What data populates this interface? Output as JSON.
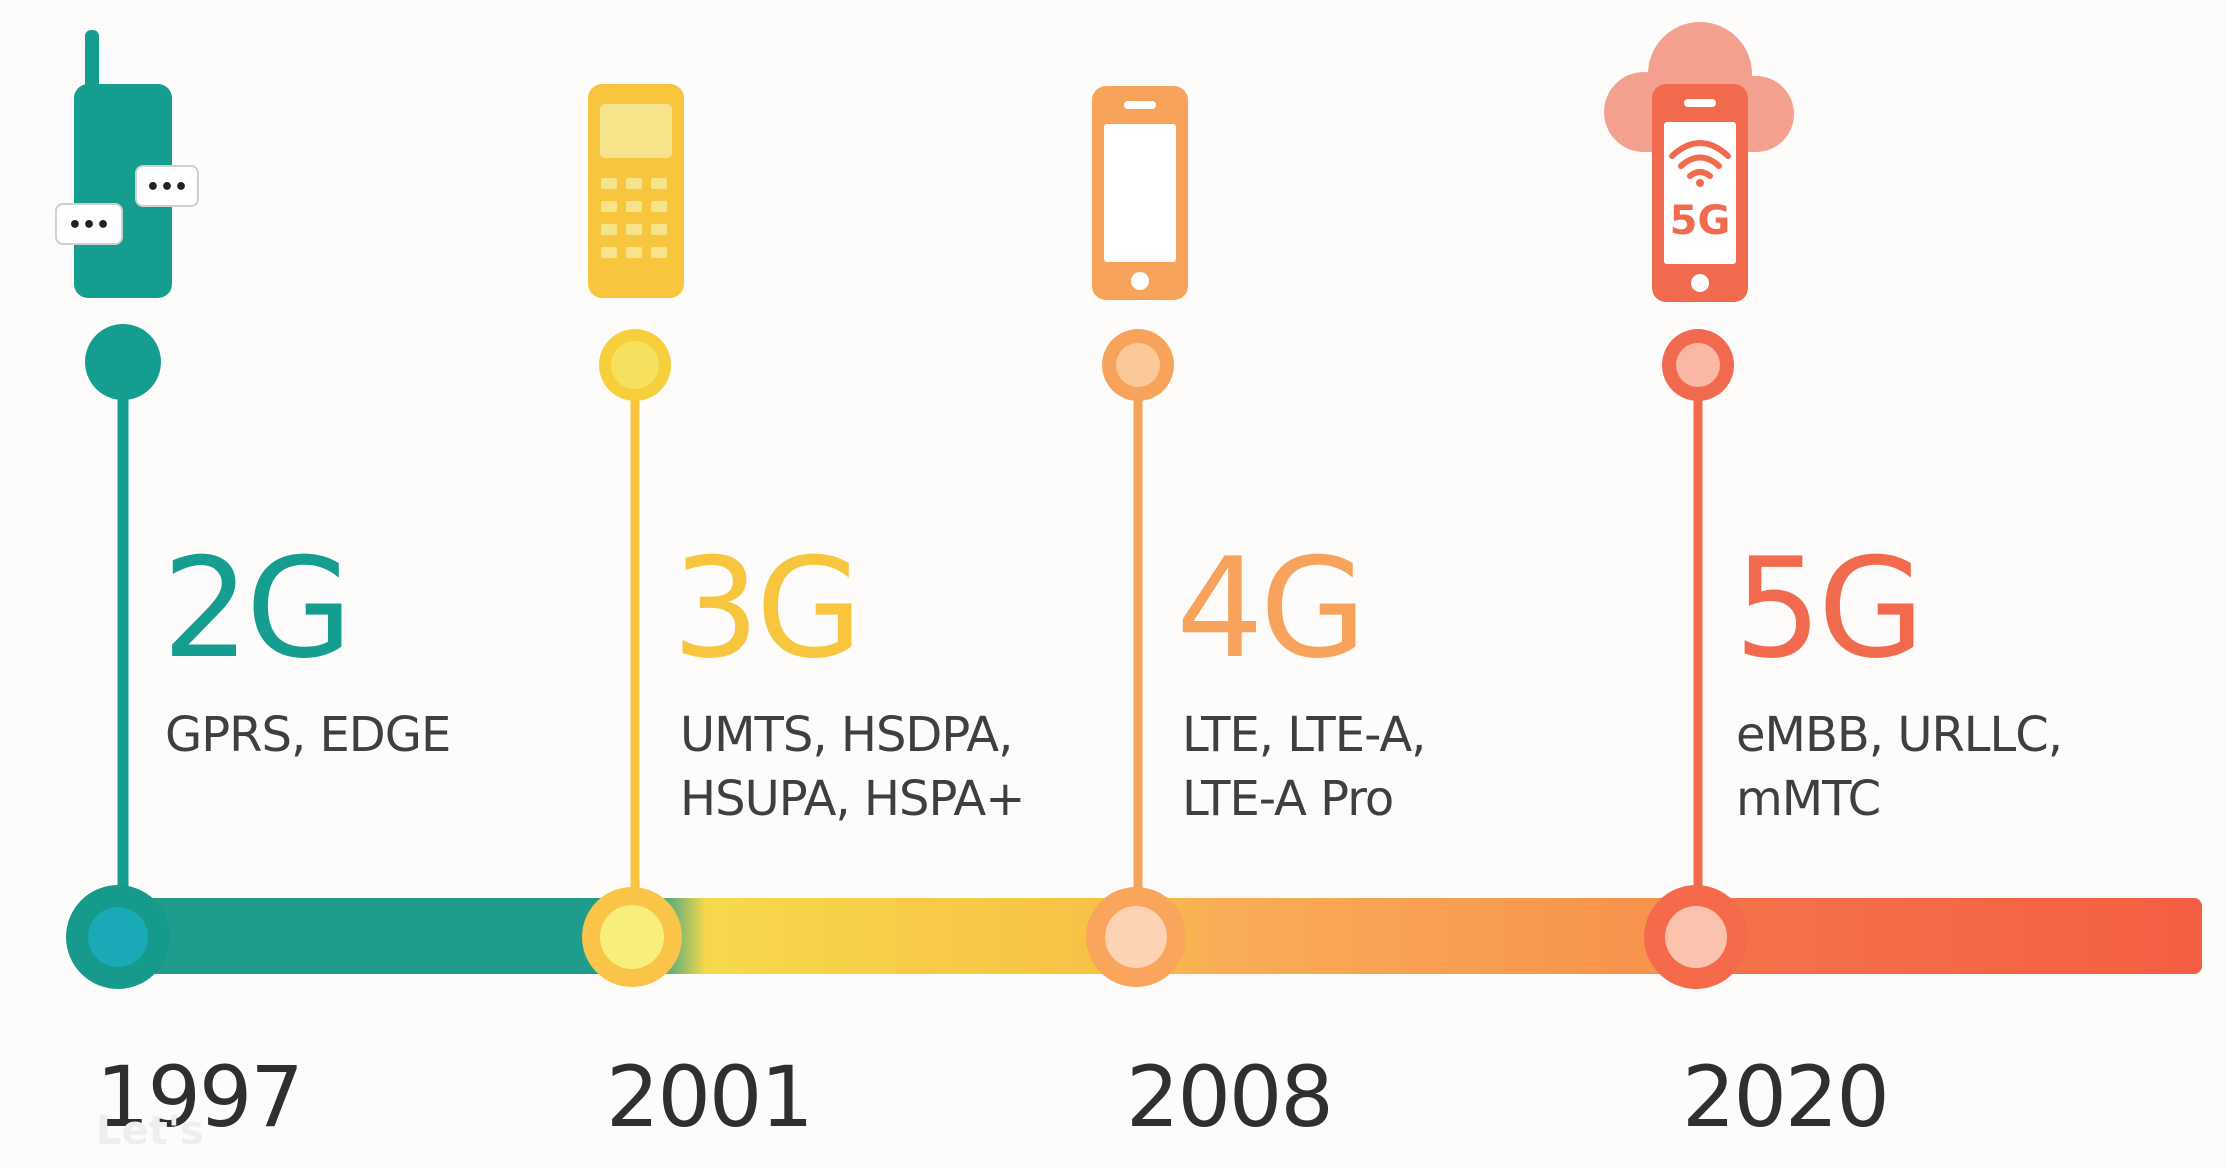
{
  "colors": {
    "g2": "#159e8f",
    "g3": "#f7c63e",
    "g4": "#f8a35b",
    "g5": "#f26a4e"
  },
  "generations": [
    {
      "title": "2G",
      "tech_line1": "GPRS, EDGE",
      "tech_line2": "",
      "year": "1997",
      "icon": "brick-phone-icon"
    },
    {
      "title": "3G",
      "tech_line1": "UMTS, HSDPA,",
      "tech_line2": "HSUPA, HSPA+",
      "year": "2001",
      "icon": "keypad-phone-icon"
    },
    {
      "title": "4G",
      "tech_line1": "LTE, LTE-A,",
      "tech_line2": "LTE-A Pro",
      "year": "2008",
      "icon": "smartphone-icon"
    },
    {
      "title": "5G",
      "tech_line1": "eMBB, URLLC,",
      "tech_line2": "mMTC",
      "year": "2020",
      "icon": "cloud-5g-phone-icon"
    }
  ],
  "icon_texts": {
    "chat_dots": "•••",
    "phone_badge": "5G"
  },
  "watermark": "Let's"
}
